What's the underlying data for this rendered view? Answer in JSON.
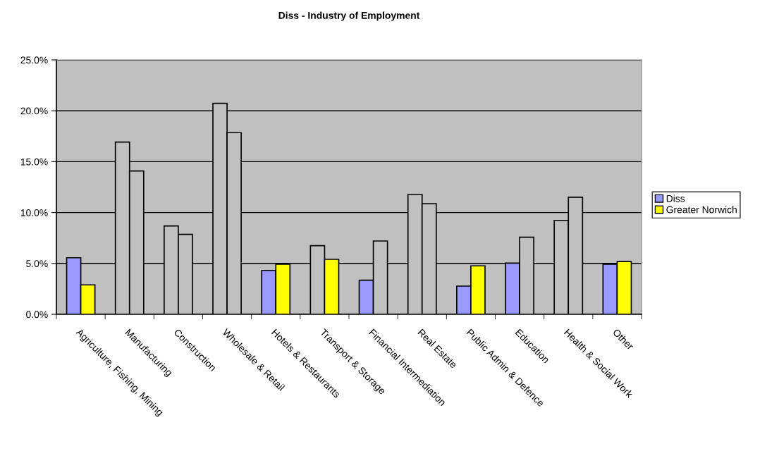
{
  "chart_data": {
    "type": "bar",
    "title": "Diss - Industry of Employment",
    "categories": [
      "Agriculture, Fishing, Mining",
      "Manufacturing",
      "Construction",
      "Wholesale & Retail",
      "Hotels & Restaurants",
      "Transport & Storage",
      "Financial Intermediation",
      "Real Estate",
      "Public Admin & Defence",
      "Education",
      "Health & Social Work",
      "Other"
    ],
    "series": [
      {
        "name": "Diss",
        "color": "#9999ff",
        "colors": [
          "#9999ff",
          "#c0c0c0",
          "#c0c0c0",
          "#c0c0c0",
          "#9999ff",
          "#c0c0c0",
          "#9999ff",
          "#c0c0c0",
          "#9999ff",
          "#9999ff",
          "#c0c0c0",
          "#9999ff"
        ],
        "values": [
          5.56,
          16.92,
          8.68,
          20.73,
          4.31,
          6.74,
          3.35,
          11.77,
          2.77,
          5.03,
          9.23,
          4.92
        ]
      },
      {
        "name": "Greater Norwich",
        "color": "#ffff00",
        "colors": [
          "#ffff00",
          "#c0c0c0",
          "#c0c0c0",
          "#c0c0c0",
          "#ffff00",
          "#ffff00",
          "#c0c0c0",
          "#c0c0c0",
          "#ffff00",
          "#c0c0c0",
          "#c0c0c0",
          "#ffff00"
        ],
        "values": [
          2.89,
          14.08,
          7.85,
          17.85,
          4.92,
          5.4,
          7.2,
          10.87,
          4.76,
          7.57,
          11.5,
          5.19
        ]
      }
    ],
    "ylim": [
      0,
      25
    ],
    "yticks": [
      {
        "value": 0,
        "label": "0.0%"
      },
      {
        "value": 5,
        "label": "5.0%"
      },
      {
        "value": 10,
        "label": "10.0%"
      },
      {
        "value": 15,
        "label": "15.0%"
      },
      {
        "value": 20,
        "label": "20.0%"
      },
      {
        "value": 25,
        "label": "25.0%"
      }
    ],
    "grid": "y",
    "legend": "right"
  }
}
